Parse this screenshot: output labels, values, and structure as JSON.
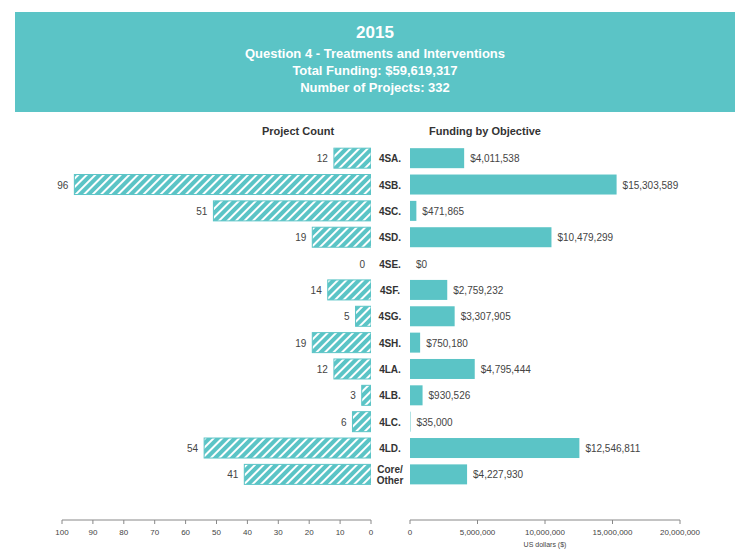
{
  "header": {
    "title": "2015",
    "lines": [
      "Question 4 - Treatments and Interventions",
      "Total Funding: $59,619,317",
      "Number of Projects: 332"
    ]
  },
  "chart_data": [
    {
      "type": "bar",
      "orientation": "horizontal",
      "title": "Project Count",
      "categories": [
        "4SA.",
        "4SB.",
        "4SC.",
        "4SD.",
        "4SE.",
        "4SF.",
        "4SG.",
        "4SH.",
        "4LA.",
        "4LB.",
        "4LC.",
        "4LD.",
        "Core/ Other"
      ],
      "values": [
        12,
        96,
        51,
        19,
        0,
        14,
        5,
        19,
        12,
        3,
        6,
        54,
        41
      ],
      "color": "#5bc4c6",
      "data_labels": true,
      "grid": false,
      "xlim": [
        100,
        0
      ],
      "xticks": [
        100,
        90,
        80,
        70,
        60,
        50,
        40,
        30,
        20,
        10,
        0
      ]
    },
    {
      "type": "bar",
      "orientation": "horizontal",
      "title": "Funding by Objective",
      "xlabel": "US dollars ($)",
      "values": [
        4011538,
        15303589,
        471865,
        10479299,
        0,
        2759232,
        3307905,
        750180,
        4795444,
        930526,
        35000,
        12546811,
        4227930
      ],
      "value_labels": [
        "$4,011,538",
        "$15,303,589",
        "$471,865",
        "$10,479,299",
        "$0",
        "$2,759,232",
        "$3,307,905",
        "$750,180",
        "$4,795,444",
        "$930,526",
        "$35,000",
        "$12,546,811",
        "$4,227,930"
      ],
      "color": "#5bc4c6",
      "data_labels": true,
      "grid": false,
      "xlim": [
        0,
        20000000
      ],
      "xticks": [
        0,
        {
          "value": 5000000,
          "label": "5,000,000"
        },
        {
          "value": 10000000,
          "label": "10,000,000"
        },
        {
          "value": 15000000,
          "label": "15,000,000"
        },
        {
          "value": 20000000,
          "label": "20,000,000"
        }
      ]
    }
  ]
}
